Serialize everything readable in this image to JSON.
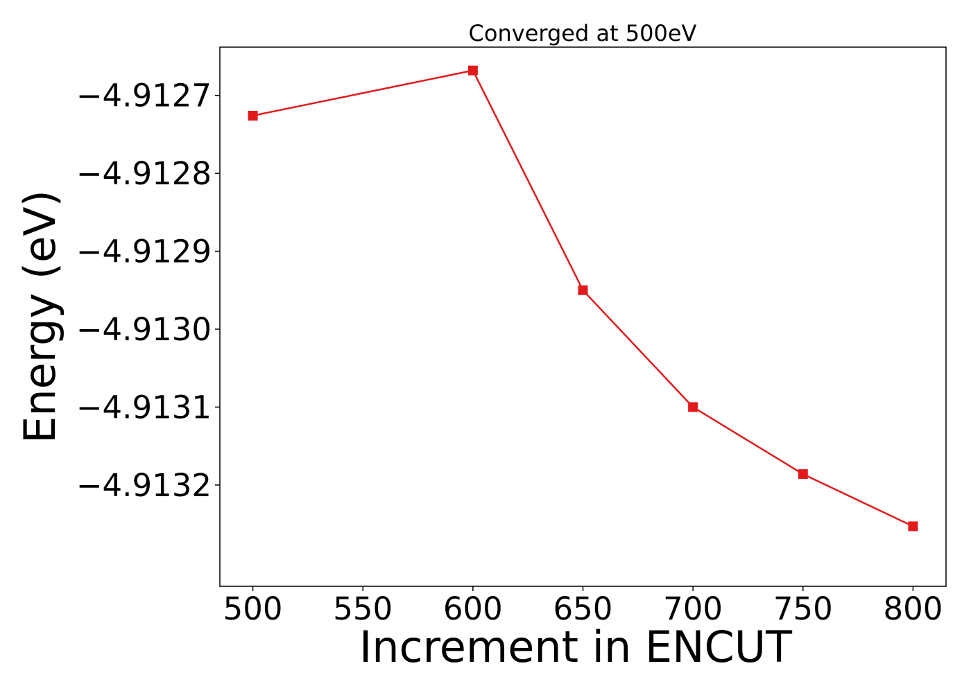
{
  "chart_data": {
    "type": "line",
    "title": "Converged at 500eV",
    "xlabel": "Increment in ENCUT",
    "ylabel": "Energy (eV)",
    "x": [
      500,
      600,
      650,
      700,
      750,
      800
    ],
    "series": [
      {
        "values": [
          -4.912726,
          -4.912668,
          -4.91295,
          -4.9131,
          -4.913186,
          -4.913253
        ],
        "color": "#e31a1c",
        "marker": "square"
      }
    ],
    "xlim": [
      485,
      815
    ],
    "ylim": [
      -4.91333,
      -4.912638
    ],
    "xticks": [
      500,
      550,
      600,
      650,
      700,
      750,
      800
    ],
    "xtick_labels": [
      "500",
      "550",
      "600",
      "650",
      "700",
      "750",
      "800"
    ],
    "yticks": [
      -4.9127,
      -4.9128,
      -4.9129,
      -4.913,
      -4.9131,
      -4.9132
    ],
    "ytick_labels": [
      "−4.9127",
      "−4.9128",
      "−4.9129",
      "−4.9130",
      "−4.9131",
      "−4.9132"
    ],
    "grid": false,
    "legend": "none"
  }
}
